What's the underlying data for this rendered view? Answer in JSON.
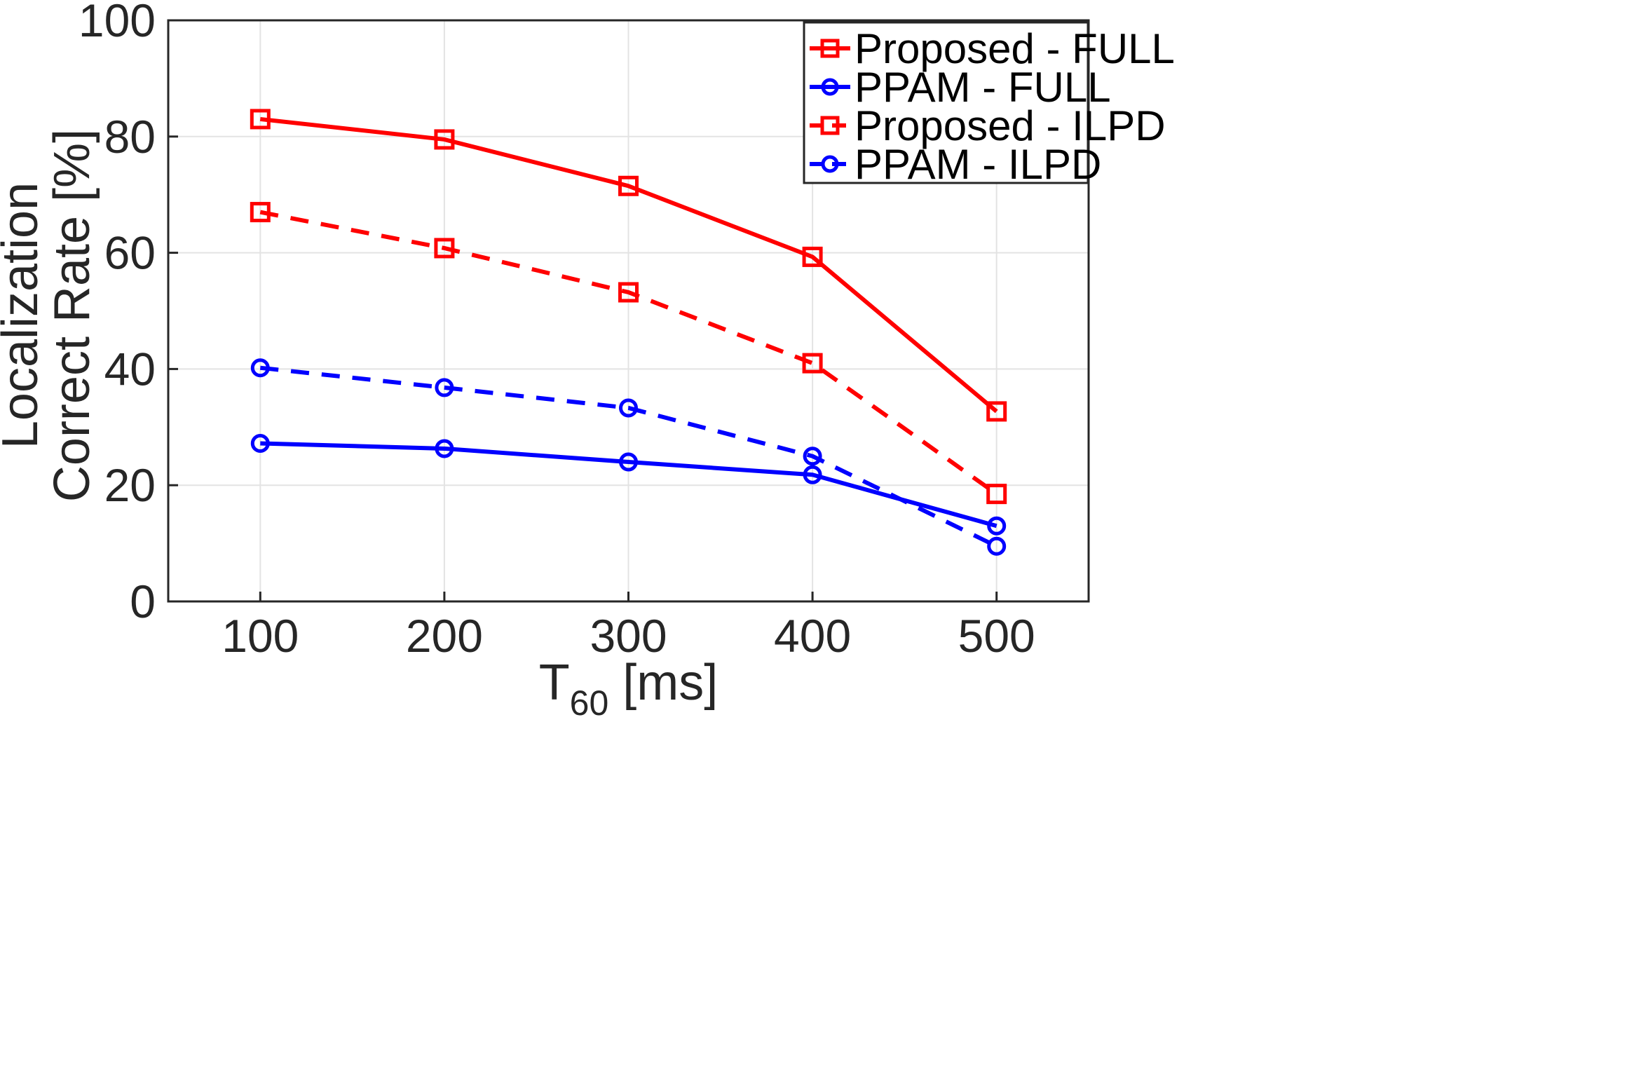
{
  "chart_data": {
    "type": "line",
    "x": [
      100,
      200,
      300,
      400,
      500
    ],
    "xlabel": "T",
    "xlabel_sub": "60",
    "xlabel_unit": " [ms]",
    "ylabel_line1": "Localization",
    "ylabel_line2": "Correct Rate [%]",
    "xlim": [
      50,
      550
    ],
    "ylim": [
      0,
      100
    ],
    "xticks": [
      100,
      200,
      300,
      400,
      500
    ],
    "yticks": [
      0,
      20,
      40,
      60,
      80,
      100
    ],
    "grid": true,
    "legend_position": "top-right",
    "series": [
      {
        "name": "Proposed - FULL",
        "values": [
          83.0,
          79.5,
          71.5,
          59.3,
          32.7
        ],
        "color": "#ff0000",
        "dashed": false,
        "marker": "square"
      },
      {
        "name": "PPAM - FULL",
        "values": [
          27.2,
          26.3,
          24.0,
          21.8,
          13.0
        ],
        "color": "#0000ff",
        "dashed": false,
        "marker": "circle"
      },
      {
        "name": "Proposed - ILPD",
        "values": [
          67.0,
          60.8,
          53.2,
          41.0,
          18.5
        ],
        "color": "#ff0000",
        "dashed": true,
        "marker": "square"
      },
      {
        "name": "PPAM - ILPD",
        "values": [
          40.2,
          36.8,
          33.3,
          25.0,
          9.5
        ],
        "color": "#0000ff",
        "dashed": true,
        "marker": "circle"
      }
    ]
  }
}
